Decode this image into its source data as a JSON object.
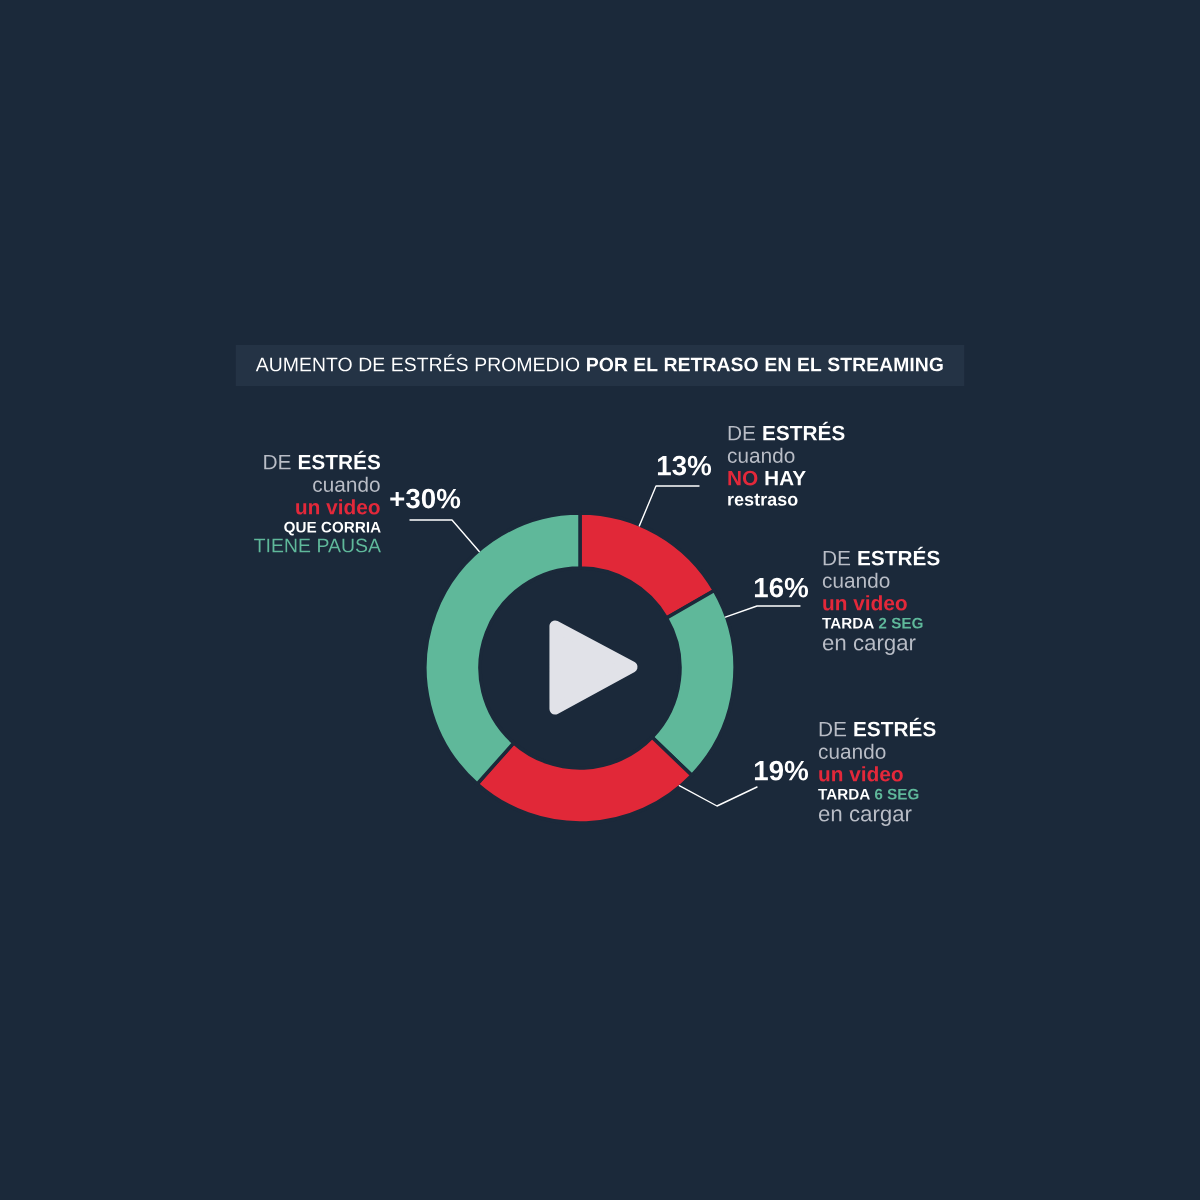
{
  "chart_data": {
    "type": "donut",
    "title": "AUMENTO DE ESTRÉS PROMEDIO POR EL RETRASO EN EL STREAMING",
    "categories": [
      "DE ESTRÉS\ncuando\nNO HAY\nrestraso",
      "DE ESTRÉS\ncuando\nun video\nTARDA 2 SEG\nen cargar",
      "DE ESTRÉS\ncuando\nun video\nTARDA 6 SEG\nen cargar",
      "DE ESTRÉS\ncuando\nun video\nQUE CORRIA\nTIENE PAUSA"
    ],
    "values": [
      13,
      16,
      19,
      30
    ],
    "colors": [
      "#e12838",
      "#5fb89a",
      "#e12838",
      "#5fb89a"
    ],
    "value_labels": [
      "13%",
      "16%",
      "19%",
      "+30%"
    ]
  }
}
